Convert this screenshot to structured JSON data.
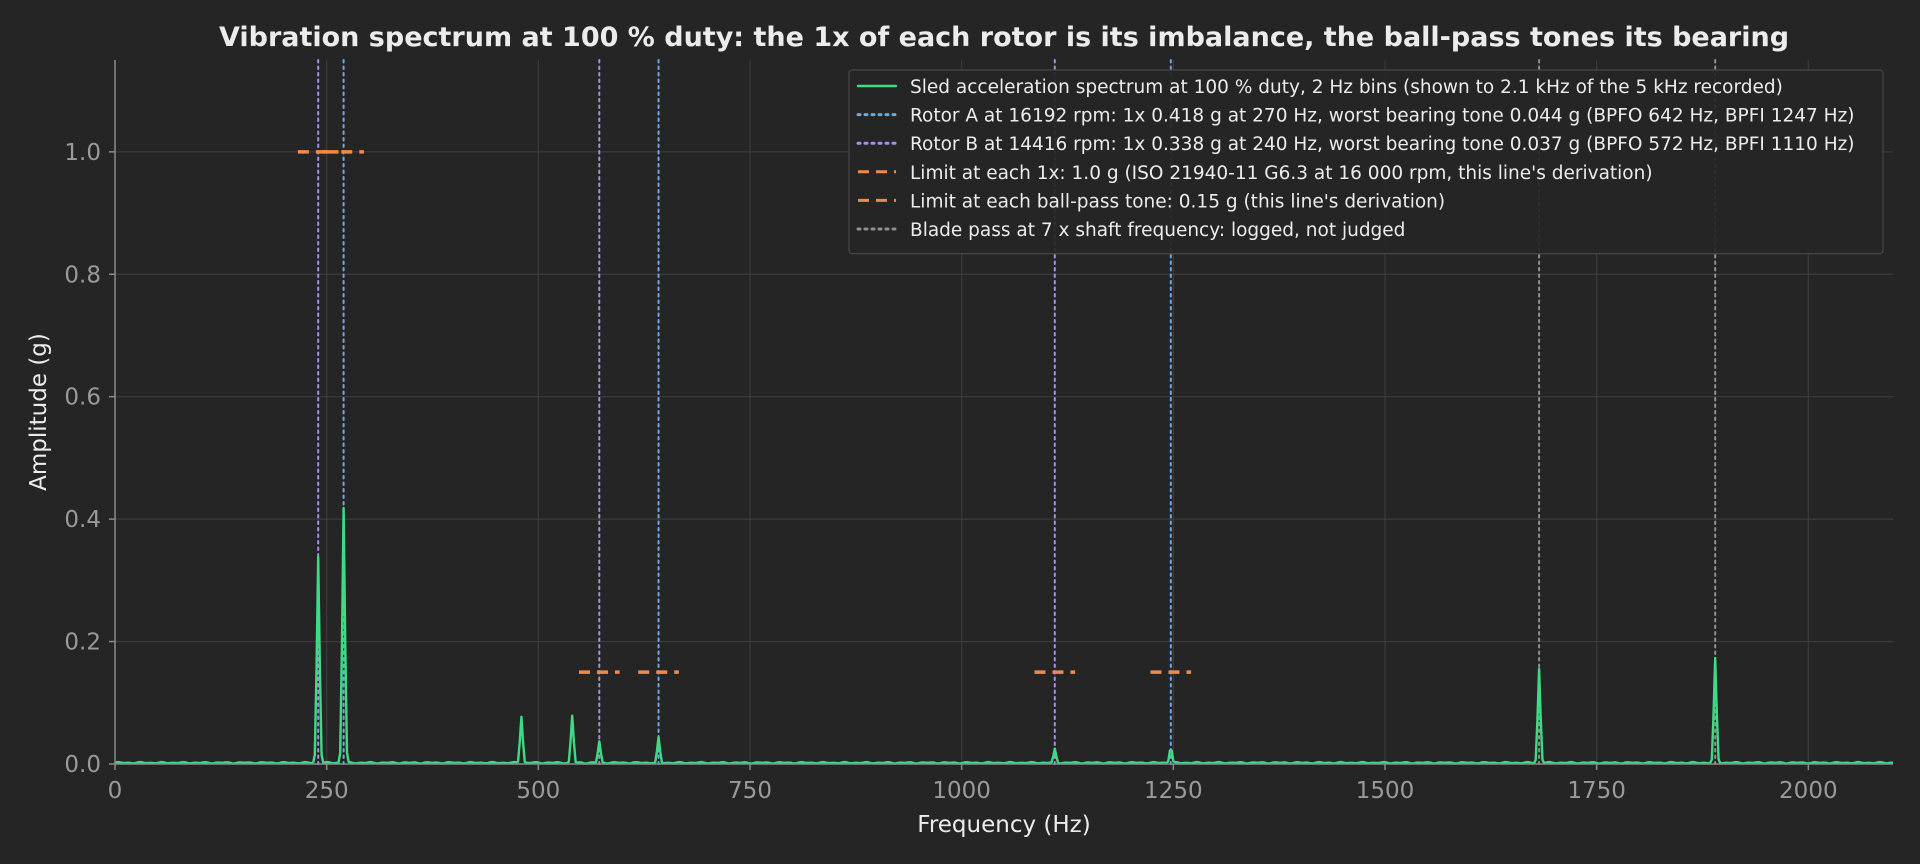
{
  "chart_data": {
    "type": "line",
    "title": "Vibration spectrum at 100 % duty: the 1x of each rotor is its imbalance, the ball-pass tones its bearing",
    "xlabel": "Frequency (Hz)",
    "ylabel": "Amplitude (g)",
    "xlim": [
      0,
      2100
    ],
    "ylim": [
      0,
      1.15
    ],
    "x_ticks": [
      0,
      250,
      500,
      750,
      1000,
      1250,
      1500,
      1750,
      2000
    ],
    "y_ticks": [
      0.0,
      0.2,
      0.4,
      0.6,
      0.8,
      1.0
    ],
    "y_tick_labels": [
      "0.0",
      "0.2",
      "0.4",
      "0.6",
      "0.8",
      "1.0"
    ],
    "grid": true,
    "legend_position": "top-right",
    "colors": {
      "background": "#252525",
      "grid": "#3c3c3c",
      "axis": "#8a8a8a",
      "spectrum": "#3ddc84",
      "rotor_a": "#6fa8e6",
      "rotor_b": "#a98ee8",
      "limit": "#f08a4b",
      "blade_pass": "#909090"
    },
    "series": [
      {
        "name": "Sled acceleration spectrum at 100 % duty, 2 Hz bins (shown to 2.1 kHz of the 5 kHz recorded)",
        "style": "solid",
        "color": "#3ddc84",
        "baseline": 0.002,
        "peaks": [
          {
            "x": 240,
            "y": 0.338
          },
          {
            "x": 270,
            "y": 0.418
          },
          {
            "x": 480,
            "y": 0.077
          },
          {
            "x": 540,
            "y": 0.079
          },
          {
            "x": 572,
            "y": 0.037
          },
          {
            "x": 642,
            "y": 0.044
          },
          {
            "x": 1110,
            "y": 0.025
          },
          {
            "x": 1247,
            "y": 0.027
          },
          {
            "x": 1682,
            "y": 0.155
          },
          {
            "x": 1890,
            "y": 0.173
          }
        ]
      }
    ],
    "reference_lines": [
      {
        "name": "Rotor A at 16192 rpm: 1x 0.418 g at 270 Hz, worst bearing tone 0.044 g (BPFO 642 Hz, BPFI 1247 Hz)",
        "style": "dotted",
        "color": "#6fa8e6",
        "x": [
          270,
          642,
          1247
        ]
      },
      {
        "name": "Rotor B at 14416 rpm: 1x 0.338 g at 240 Hz, worst bearing tone 0.037 g (BPFO 572 Hz, BPFI 1110 Hz)",
        "style": "dotted",
        "color": "#a98ee8",
        "x": [
          240,
          572,
          1110
        ]
      },
      {
        "name": "Blade pass at 7 x shaft frequency: logged, not judged",
        "style": "dotted",
        "color": "#909090",
        "x": [
          1682,
          1890
        ]
      }
    ],
    "limit_segments": [
      {
        "name": "Limit at each 1x: 1.0 g (ISO 21940-11 G6.3 at 16 000 rpm, this line's derivation)",
        "style": "dashed",
        "color": "#f08a4b",
        "y": 1.0,
        "ranges": [
          [
            216,
            264
          ],
          [
            246,
            294
          ]
        ]
      },
      {
        "name": "Limit at each ball-pass tone: 0.15 g (this line's derivation)",
        "style": "dashed",
        "color": "#f08a4b",
        "y": 0.15,
        "ranges": [
          [
            548,
            596
          ],
          [
            618,
            666
          ],
          [
            1086,
            1134
          ],
          [
            1223,
            1271
          ]
        ]
      }
    ],
    "legend": [
      {
        "label": "Sled acceleration spectrum at 100 % duty, 2 Hz bins (shown to 2.1 kHz of the 5 kHz recorded)",
        "style": "solid",
        "color": "#3ddc84"
      },
      {
        "label": "Rotor A at 16192 rpm: 1x 0.418 g at 270 Hz, worst bearing tone 0.044 g (BPFO 642 Hz, BPFI 1247 Hz)",
        "style": "dotted",
        "color": "#6fa8e6"
      },
      {
        "label": "Rotor B at 14416 rpm: 1x 0.338 g at 240 Hz, worst bearing tone 0.037 g (BPFO 572 Hz, BPFI 1110 Hz)",
        "style": "dotted",
        "color": "#a98ee8"
      },
      {
        "label": "Limit at each 1x: 1.0 g (ISO 21940-11 G6.3 at 16 000 rpm, this line's derivation)",
        "style": "dashed",
        "color": "#f08a4b"
      },
      {
        "label": "Limit at each ball-pass tone: 0.15 g (this line's derivation)",
        "style": "dashed",
        "color": "#f08a4b"
      },
      {
        "label": "Blade pass at 7 x shaft frequency: logged, not judged",
        "style": "dotted",
        "color": "#909090"
      }
    ]
  }
}
